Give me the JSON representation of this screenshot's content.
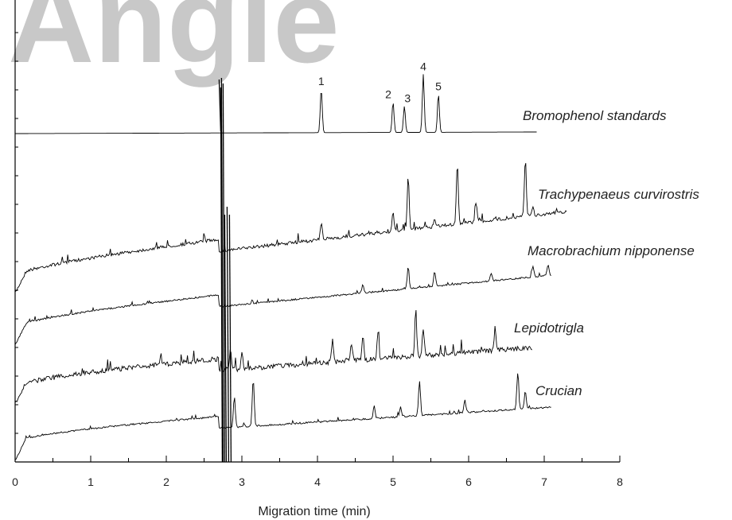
{
  "chart_data": {
    "type": "line",
    "xlabel": "Migration time (min)",
    "ylabel": "",
    "xlim": [
      0,
      8
    ],
    "x_ticks": [
      0,
      1,
      2,
      3,
      4,
      5,
      6,
      7,
      8
    ],
    "x_tick_labels": [
      "0",
      "1",
      "2",
      "3",
      "4",
      "5",
      "6",
      "7",
      "8"
    ],
    "grid": false,
    "watermark": "Angle",
    "line_color": "#000000",
    "series": [
      {
        "name": "Bromophenol standards",
        "baseline_start": 168,
        "baseline_end": 166,
        "x_end": 6.9,
        "noise": 0,
        "peaks": [
          {
            "x": 4.05,
            "height": 55,
            "label": "1"
          },
          {
            "x": 5.0,
            "height": 38,
            "label": "2"
          },
          {
            "x": 5.15,
            "height": 33,
            "label": "3"
          },
          {
            "x": 5.4,
            "height": 73,
            "label": "4"
          },
          {
            "x": 5.6,
            "height": 48,
            "label": "5"
          }
        ]
      },
      {
        "name": "Trachypenaeus curvirostris",
        "baseline_start": 345,
        "baseline_end": 266,
        "x_end": 7.3,
        "noise": 4,
        "peaks": [
          {
            "x": 4.05,
            "height": 20
          },
          {
            "x": 5.0,
            "height": 22
          },
          {
            "x": 5.2,
            "height": 68
          },
          {
            "x": 5.55,
            "height": 8
          },
          {
            "x": 5.85,
            "height": 76
          },
          {
            "x": 6.1,
            "height": 24
          },
          {
            "x": 6.75,
            "height": 70
          },
          {
            "x": 6.85,
            "height": 10
          }
        ]
      },
      {
        "name": "Macrobrachium nipponense",
        "baseline_start": 410,
        "baseline_end": 346,
        "x_end": 7.1,
        "noise": 2,
        "peaks": [
          {
            "x": 4.6,
            "height": 10
          },
          {
            "x": 5.2,
            "height": 27
          },
          {
            "x": 5.55,
            "height": 18
          },
          {
            "x": 6.3,
            "height": 10
          },
          {
            "x": 6.85,
            "height": 14
          },
          {
            "x": 7.05,
            "height": 14
          }
        ]
      },
      {
        "name": "Lepidotrigla",
        "baseline_start": 485,
        "baseline_end": 437,
        "x_end": 6.85,
        "noise": 6,
        "peaks": [
          {
            "x": 2.85,
            "height": 25
          },
          {
            "x": 3.0,
            "height": 22
          },
          {
            "x": 4.2,
            "height": 28
          },
          {
            "x": 4.45,
            "height": 22
          },
          {
            "x": 4.6,
            "height": 30
          },
          {
            "x": 4.8,
            "height": 32
          },
          {
            "x": 5.3,
            "height": 58
          },
          {
            "x": 5.4,
            "height": 35
          },
          {
            "x": 6.35,
            "height": 28
          }
        ]
      },
      {
        "name": "Crucian",
        "baseline_start": 555,
        "baseline_end": 512,
        "x_end": 7.1,
        "noise": 2,
        "peaks": [
          {
            "x": 2.9,
            "height": 38
          },
          {
            "x": 3.15,
            "height": 60
          },
          {
            "x": 4.75,
            "height": 16
          },
          {
            "x": 5.1,
            "height": 12
          },
          {
            "x": 5.35,
            "height": 44
          },
          {
            "x": 5.95,
            "height": 16
          },
          {
            "x": 6.65,
            "height": 46
          },
          {
            "x": 6.75,
            "height": 22
          }
        ]
      }
    ]
  }
}
